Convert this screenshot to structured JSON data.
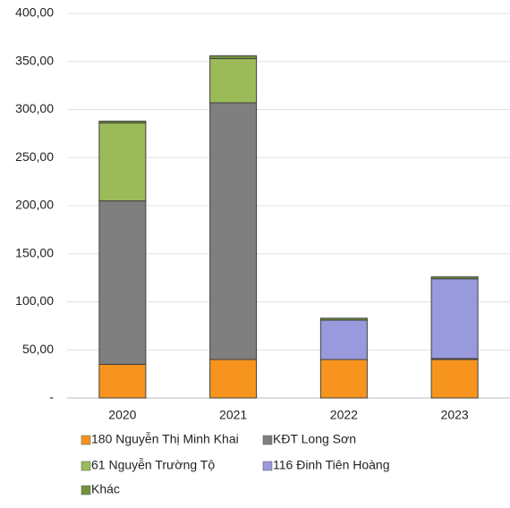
{
  "chart_data": {
    "type": "stacked-bar",
    "categories": [
      "2020",
      "2021",
      "2022",
      "2023"
    ],
    "series": [
      {
        "name": "180 Nguyễn Thị Minh Khai",
        "color": "#f7941d",
        "values": [
          35,
          40,
          40,
          40
        ]
      },
      {
        "name": "KĐT Long Sơn",
        "color": "#7f7f7f",
        "values": [
          170,
          267,
          0,
          0
        ]
      },
      {
        "name": "61 Nguyễn Trường Tộ",
        "color": "#9bbb59",
        "values": [
          81,
          46,
          0,
          1
        ]
      },
      {
        "name": "116 Đinh Tiên Hoàng",
        "color": "#9999dd",
        "values": [
          0,
          0,
          41,
          83
        ]
      },
      {
        "name": "Khác",
        "color": "#76933c",
        "values": [
          2,
          3,
          2,
          2
        ]
      }
    ],
    "ylim": [
      0,
      400
    ],
    "yticks": [
      {
        "value": 0,
        "label": "-"
      },
      {
        "value": 50,
        "label": "50,00"
      },
      {
        "value": 100,
        "label": "100,00"
      },
      {
        "value": 150,
        "label": "150,00"
      },
      {
        "value": 200,
        "label": "200,00"
      },
      {
        "value": 250,
        "label": "250,00"
      },
      {
        "value": 300,
        "label": "300,00"
      },
      {
        "value": 350,
        "label": "350,00"
      },
      {
        "value": 400,
        "label": "400,00"
      }
    ],
    "grid": true
  }
}
